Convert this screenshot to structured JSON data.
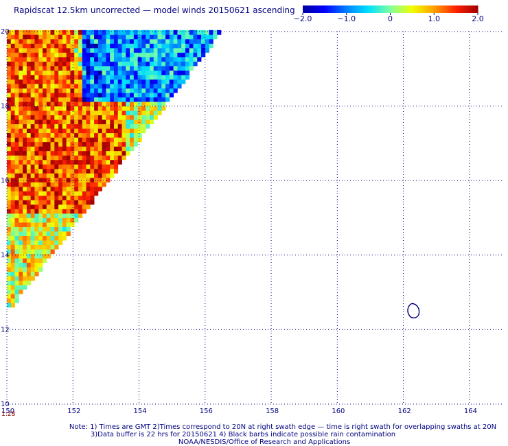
{
  "header": {
    "title": "Rapidscat 12.5km uncorrected — model winds 20150621 ascending"
  },
  "colorbar": {
    "labels": [
      "−2.0",
      "−1.0",
      "0",
      "1.0",
      "2.0"
    ],
    "values": [
      -2.0,
      -1.0,
      0,
      1.0,
      2.0
    ],
    "colors": [
      "#0000a0",
      "#0000ff",
      "#0080ff",
      "#00e0ff",
      "#80ffa0",
      "#f0ff00",
      "#ffa000",
      "#ff2000",
      "#a00000"
    ]
  },
  "time_label": "1:28",
  "notes": {
    "line1": "Note: 1) Times are GMT 2)Times correspond to 20N at right swath edge — time is right swath for overlapping swaths at 20N",
    "line2": "3)Data buffer is 22 hrs for 20150621 4) Black barbs indicate possible rain contamination",
    "line3": "NOAA/NESDIS/Office of Research and Applications"
  },
  "chart_data": {
    "type": "heatmap",
    "title": "Rapidscat 12.5km uncorrected — model winds 20150621 ascending",
    "x_ticks": [
      150,
      152,
      154,
      156,
      158,
      160,
      162,
      164
    ],
    "x_tick_labels": [
      "150",
      "152",
      "154",
      "156",
      "158",
      "160",
      "162",
      "164"
    ],
    "y_ticks": [
      10,
      12,
      14,
      16,
      18,
      20
    ],
    "y_tick_labels": [
      "10",
      "12",
      "14",
      "16",
      "18",
      "20"
    ],
    "xlim": [
      150,
      165
    ],
    "ylim": [
      10,
      20
    ],
    "value_range": [
      -2.0,
      2.0
    ],
    "grid": true,
    "swath": {
      "top_lat": 20,
      "top_lon_right": 156.4,
      "bottom_lat": 12.6,
      "bottom_lon_right": 150.05
    },
    "regions": [
      {
        "lat_min": 18.0,
        "lat_max": 20.0,
        "lon_min": 150.0,
        "lon_max": 152.2,
        "value": 1.2
      },
      {
        "lat_min": 18.0,
        "lat_max": 20.0,
        "lon_min": 152.2,
        "lon_max": 156.5,
        "value": -0.8
      },
      {
        "lat_min": 15.0,
        "lat_max": 18.0,
        "lon_min": 150.0,
        "lon_max": 153.5,
        "value": 1.3
      },
      {
        "lat_min": 13.0,
        "lat_max": 15.0,
        "lon_min": 150.0,
        "lon_max": 151.5,
        "value": 0.5
      }
    ],
    "contour": {
      "lon": 162.3,
      "lat": 12.5
    }
  }
}
